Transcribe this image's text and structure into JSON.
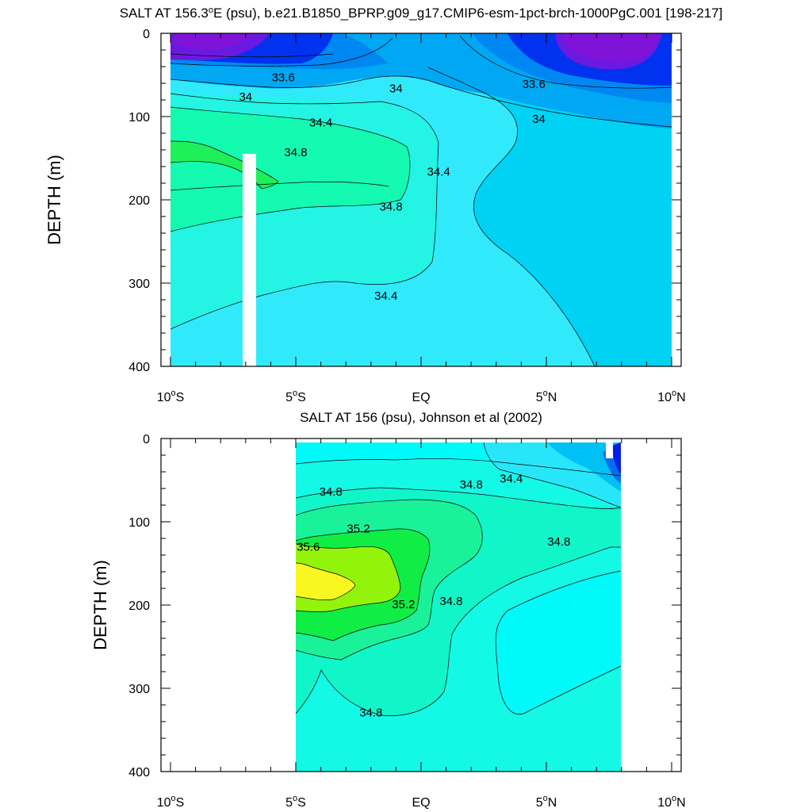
{
  "chart_data": [
    {
      "type": "contour",
      "title": "SALT AT 156.3°E (psu), b.e21.B1850_BPRP.g09_g17.CMIP6-esm-1pct-brch-1000PgC.001 [198-217]",
      "title_parts": [
        "SALT AT 156.3",
        "o",
        "E (psu), b.e21.B1850_BPRP.g09_g17.CMIP6-esm-1pct-brch-1000PgC.001 [198-217]"
      ],
      "ylabel": "DEPTH (m)",
      "xlabel": "",
      "xlim": [
        -10,
        10
      ],
      "ylim": [
        400,
        0
      ],
      "x_ticks": [
        {
          "value": -10,
          "num": "10",
          "hem": "S"
        },
        {
          "value": -5,
          "num": "5",
          "hem": "S"
        },
        {
          "value": 0,
          "num": "EQ",
          "hem": ""
        },
        {
          "value": 5,
          "num": "5",
          "hem": "N"
        },
        {
          "value": 10,
          "num": "10",
          "hem": "N"
        }
      ],
      "y_ticks": [
        "0",
        "100",
        "200",
        "300",
        "400"
      ],
      "y_tick_values": [
        0,
        100,
        200,
        300,
        400
      ],
      "contour_levels": [
        33.2,
        33.6,
        34.0,
        34.2,
        34.4,
        34.6,
        34.8,
        35.0
      ],
      "contour_labels": [
        {
          "text": "33.6",
          "x": -5.5,
          "y": 53
        },
        {
          "text": "34",
          "x": -7.0,
          "y": 76
        },
        {
          "text": "34",
          "x": -1.0,
          "y": 66
        },
        {
          "text": "33.6",
          "x": 4.5,
          "y": 61
        },
        {
          "text": "34",
          "x": 4.7,
          "y": 103
        },
        {
          "text": "34.4",
          "x": -4.0,
          "y": 107
        },
        {
          "text": "34.8",
          "x": -5.0,
          "y": 143
        },
        {
          "text": "34.4",
          "x": 0.7,
          "y": 166
        },
        {
          "text": "34.8",
          "x": -1.2,
          "y": 208
        },
        {
          "text": "34.4",
          "x": -1.4,
          "y": 315
        }
      ],
      "masked_regions": [
        {
          "x_from": -7.1,
          "x_to": -6.6,
          "y_from": 140,
          "y_to": 400
        }
      ]
    },
    {
      "type": "contour",
      "title": "SALT AT 156 (psu), Johnson et al (2002)",
      "title_parts": [
        "SALT AT 156 (psu), Johnson et al (2002)"
      ],
      "ylabel": "DEPTH (m)",
      "xlabel": "",
      "xlim": [
        -10,
        10
      ],
      "ylim": [
        400,
        0
      ],
      "data_x_range": [
        -5,
        8
      ],
      "x_ticks": [
        {
          "value": -10,
          "num": "10",
          "hem": "S"
        },
        {
          "value": -5,
          "num": "5",
          "hem": "S"
        },
        {
          "value": 0,
          "num": "EQ",
          "hem": ""
        },
        {
          "value": 5,
          "num": "5",
          "hem": "N"
        },
        {
          "value": 10,
          "num": "10",
          "hem": "N"
        }
      ],
      "y_ticks": [
        "0",
        "100",
        "200",
        "300",
        "400"
      ],
      "y_tick_values": [
        0,
        100,
        200,
        300,
        400
      ],
      "contour_levels": [
        34.2,
        34.4,
        34.6,
        34.8,
        35.0,
        35.2,
        35.4,
        35.6
      ],
      "contour_labels": [
        {
          "text": "34.8",
          "x": -3.6,
          "y": 64
        },
        {
          "text": "35.2",
          "x": -2.5,
          "y": 108
        },
        {
          "text": "35.6",
          "x": -4.5,
          "y": 130
        },
        {
          "text": "35.2",
          "x": -0.7,
          "y": 199
        },
        {
          "text": "34.8",
          "x": 1.2,
          "y": 195
        },
        {
          "text": "34.8",
          "x": 2.0,
          "y": 55
        },
        {
          "text": "34.4",
          "x": 3.6,
          "y": 48
        },
        {
          "text": "34.8",
          "x": 5.5,
          "y": 124
        },
        {
          "text": "34.8",
          "x": -2.0,
          "y": 329
        }
      ]
    }
  ]
}
